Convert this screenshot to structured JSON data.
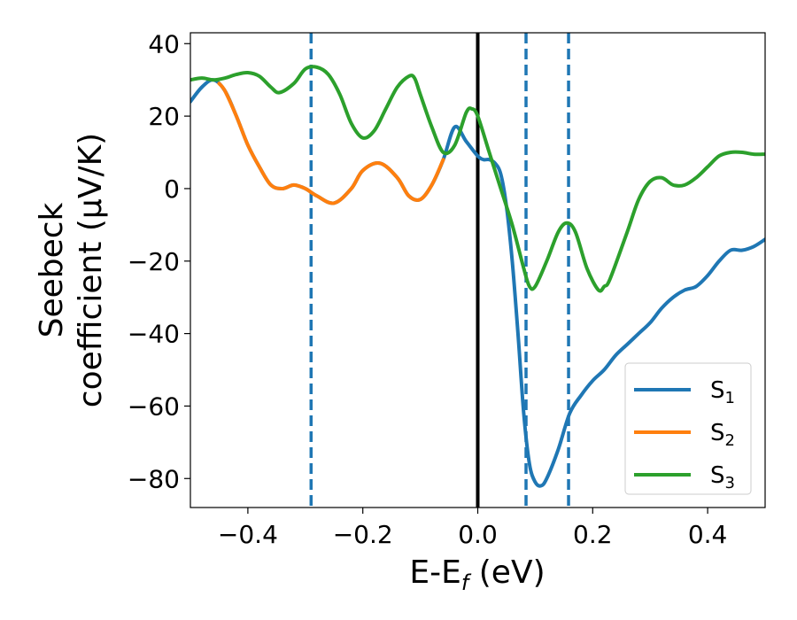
{
  "chart_data": {
    "type": "line",
    "xlabel": {
      "main": "E-E",
      "sub": "f",
      "tail": " (eV)"
    },
    "ylabel": {
      "line1": "Seebeck",
      "line2": "coefficient  (μV/K)"
    },
    "xlim": [
      -0.5,
      0.5
    ],
    "ylim": [
      -88,
      43
    ],
    "xticks": [
      -0.4,
      -0.2,
      0.0,
      0.2,
      0.4
    ],
    "xtick_labels": [
      "−0.4",
      "−0.2",
      "0.0",
      "0.2",
      "0.4"
    ],
    "yticks": [
      40,
      20,
      0,
      -20,
      -40,
      -60,
      -80
    ],
    "ytick_labels": [
      "40",
      "20",
      "0",
      "−20",
      "−40",
      "−60",
      "−80"
    ],
    "grid": false,
    "legend_position": "lower-right",
    "vlines": [
      {
        "x": 0.0,
        "style": "solid",
        "color": "#000000"
      },
      {
        "x": -0.29,
        "style": "dashed",
        "color": "#1f77b4"
      },
      {
        "x": 0.084,
        "style": "dashed",
        "color": "#1f77b4"
      },
      {
        "x": 0.158,
        "style": "dashed",
        "color": "#1f77b4"
      }
    ],
    "series": [
      {
        "name": "S",
        "sub": "1",
        "color": "#1f77b4",
        "x": [
          -0.5,
          -0.48,
          -0.46,
          -0.44,
          -0.42,
          -0.4,
          -0.38,
          -0.36,
          -0.34,
          -0.32,
          -0.3,
          -0.28,
          -0.25,
          -0.22,
          -0.2,
          -0.17,
          -0.14,
          -0.12,
          -0.1,
          -0.08,
          -0.06,
          -0.04,
          -0.02,
          0.0,
          0.01,
          0.02,
          0.03,
          0.04,
          0.05,
          0.06,
          0.07,
          0.08,
          0.09,
          0.1,
          0.11,
          0.12,
          0.14,
          0.16,
          0.18,
          0.2,
          0.22,
          0.24,
          0.26,
          0.28,
          0.3,
          0.32,
          0.34,
          0.36,
          0.38,
          0.4,
          0.42,
          0.44,
          0.46,
          0.48,
          0.5
        ],
        "y": [
          24,
          28,
          30,
          27,
          20,
          12,
          6,
          1,
          0,
          1,
          0,
          -2,
          -4,
          0,
          5,
          7,
          3,
          -2,
          -3,
          1,
          8,
          17,
          13,
          9,
          8,
          8,
          7,
          4,
          -5,
          -20,
          -40,
          -62,
          -76,
          -81,
          -82,
          -80,
          -72,
          -62,
          -57,
          -53,
          -50,
          -46,
          -43,
          -40,
          -37,
          -33,
          -30,
          -28,
          -27,
          -24,
          -20,
          -17,
          -17,
          -16,
          -14
        ]
      },
      {
        "name": "S",
        "sub": "2",
        "color": "#ff7f0e",
        "x": [
          -0.45,
          -0.44,
          -0.42,
          -0.4,
          -0.38,
          -0.36,
          -0.34,
          -0.32,
          -0.3,
          -0.28,
          -0.25,
          -0.22,
          -0.2,
          -0.17,
          -0.14,
          -0.12,
          -0.1,
          -0.08,
          -0.06
        ],
        "y": [
          29,
          27,
          20,
          12,
          6,
          1,
          0,
          1,
          0,
          -2,
          -4,
          0,
          5,
          7,
          3,
          -2,
          -3,
          1,
          8
        ]
      },
      {
        "name": "S",
        "sub": "3",
        "color": "#2ca02c",
        "x": [
          -0.5,
          -0.48,
          -0.46,
          -0.44,
          -0.42,
          -0.4,
          -0.38,
          -0.36,
          -0.345,
          -0.32,
          -0.3,
          -0.28,
          -0.26,
          -0.24,
          -0.22,
          -0.2,
          -0.18,
          -0.16,
          -0.14,
          -0.12,
          -0.11,
          -0.1,
          -0.08,
          -0.06,
          -0.04,
          -0.02,
          -0.01,
          0.0,
          0.02,
          0.04,
          0.06,
          0.08,
          0.09,
          0.1,
          0.12,
          0.14,
          0.155,
          0.17,
          0.19,
          0.21,
          0.22,
          0.23,
          0.26,
          0.28,
          0.3,
          0.32,
          0.34,
          0.36,
          0.38,
          0.4,
          0.42,
          0.44,
          0.46,
          0.48,
          0.5
        ],
        "y": [
          30,
          30.5,
          30,
          30.5,
          31.5,
          32,
          31,
          28,
          26.5,
          29,
          33,
          33.5,
          31.5,
          26,
          18,
          14,
          16,
          22,
          28,
          31,
          30.5,
          26,
          17,
          10,
          12,
          21,
          22,
          20,
          10,
          0,
          -10,
          -22,
          -27,
          -27,
          -20,
          -12,
          -9.5,
          -12,
          -22,
          -28,
          -27,
          -25,
          -12,
          -3,
          2,
          3,
          1,
          1,
          3,
          6,
          9,
          10,
          10,
          9.5,
          9.5
        ]
      }
    ]
  }
}
